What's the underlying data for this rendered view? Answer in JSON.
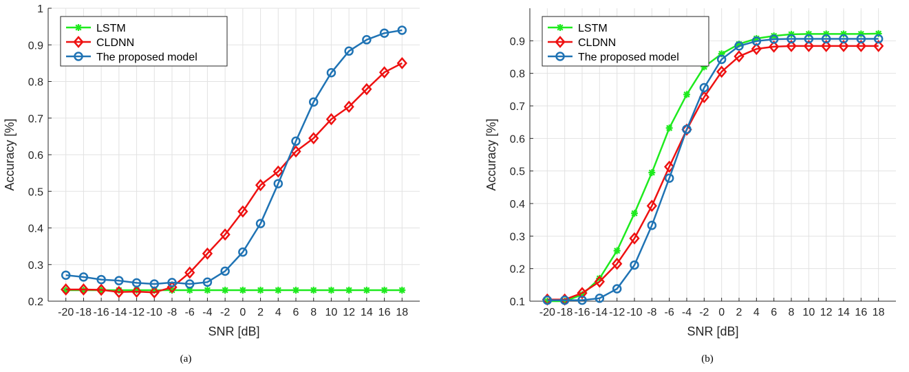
{
  "chart_data": [
    {
      "type": "line",
      "caption": "(a)",
      "xlabel": "SNR [dB]",
      "ylabel": "Accuracy [%]",
      "x": [
        -20,
        -18,
        -16,
        -14,
        -12,
        -10,
        -8,
        -6,
        -4,
        -2,
        0,
        2,
        4,
        6,
        8,
        10,
        12,
        14,
        16,
        18
      ],
      "xticks": [
        "-20",
        "-18",
        "-16",
        "-14",
        "-12",
        "-10",
        "-8",
        "-6",
        "-4",
        "-2",
        "0",
        "2",
        "4",
        "6",
        "8",
        "10",
        "12",
        "14",
        "16",
        "18"
      ],
      "ylim": [
        0.2,
        1
      ],
      "yticks": [
        "0.2",
        "0.3",
        "0.4",
        "0.5",
        "0.6",
        "0.7",
        "0.8",
        "0.9",
        "1"
      ],
      "grid": true,
      "legend_position": "top-left",
      "series": [
        {
          "name": "LSTM",
          "color": "#1eea1e",
          "marker": "asterisk",
          "values": [
            0.23,
            0.23,
            0.23,
            0.23,
            0.23,
            0.23,
            0.23,
            0.23,
            0.23,
            0.23,
            0.23,
            0.23,
            0.23,
            0.23,
            0.23,
            0.23,
            0.23,
            0.23,
            0.23,
            0.23
          ]
        },
        {
          "name": "CLDNN",
          "color": "#ee1111",
          "marker": "diamond",
          "values": [
            0.232,
            0.232,
            0.231,
            0.225,
            0.226,
            0.224,
            0.238,
            0.278,
            0.33,
            0.382,
            0.445,
            0.517,
            0.554,
            0.609,
            0.645,
            0.697,
            0.731,
            0.779,
            0.825,
            0.85
          ]
        },
        {
          "name": "The proposed model",
          "color": "#1f73b4",
          "marker": "circle",
          "values": [
            0.271,
            0.266,
            0.259,
            0.256,
            0.25,
            0.247,
            0.251,
            0.247,
            0.252,
            0.282,
            0.334,
            0.412,
            0.521,
            0.637,
            0.744,
            0.824,
            0.883,
            0.914,
            0.932,
            0.94
          ]
        }
      ]
    },
    {
      "type": "line",
      "caption": "(b)",
      "xlabel": "SNR [dB]",
      "ylabel": "Accuracy [%]",
      "x": [
        -20,
        -18,
        -16,
        -14,
        -12,
        -10,
        -8,
        -6,
        -4,
        -2,
        0,
        2,
        4,
        6,
        8,
        10,
        12,
        14,
        16,
        18
      ],
      "xticks": [
        "-20",
        "-18",
        "-16",
        "-14",
        "-12",
        "-10",
        "-8",
        "-6",
        "-4",
        "-2",
        "0",
        "2",
        "4",
        "6",
        "8",
        "10",
        "12",
        "14",
        "16",
        "18"
      ],
      "ylim": [
        0.1,
        1
      ],
      "yticks": [
        "0.1",
        "0.2",
        "0.3",
        "0.4",
        "0.5",
        "0.6",
        "0.7",
        "0.8",
        "0.9"
      ],
      "grid": true,
      "legend_position": "top-left",
      "series": [
        {
          "name": "LSTM",
          "color": "#1eea1e",
          "marker": "asterisk",
          "values": [
            0.1,
            0.1,
            0.12,
            0.17,
            0.255,
            0.37,
            0.495,
            0.632,
            0.735,
            0.82,
            0.86,
            0.89,
            0.907,
            0.915,
            0.92,
            0.921,
            0.921,
            0.921,
            0.921,
            0.922
          ]
        },
        {
          "name": "CLDNN",
          "color": "#ee1111",
          "marker": "diamond",
          "values": [
            0.105,
            0.105,
            0.125,
            0.16,
            0.215,
            0.293,
            0.393,
            0.513,
            0.627,
            0.727,
            0.805,
            0.852,
            0.875,
            0.882,
            0.884,
            0.884,
            0.884,
            0.884,
            0.884,
            0.884
          ]
        },
        {
          "name": "The proposed model",
          "color": "#1f73b4",
          "marker": "circle",
          "values": [
            0.103,
            0.103,
            0.103,
            0.109,
            0.138,
            0.211,
            0.333,
            0.478,
            0.628,
            0.756,
            0.843,
            0.884,
            0.899,
            0.905,
            0.906,
            0.906,
            0.906,
            0.906,
            0.906,
            0.906
          ]
        }
      ]
    }
  ]
}
